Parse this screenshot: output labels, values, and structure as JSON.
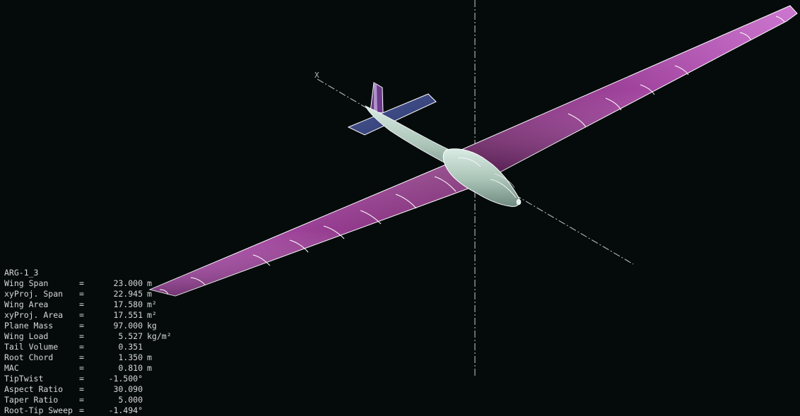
{
  "viewport": {
    "background": "#050b0b",
    "axis_label": "X"
  },
  "colors": {
    "wing_root": "#8a2f7e",
    "wing_tip": "#d06ad0",
    "elevator": "#3c4a80",
    "fin": "#6a3a8a",
    "fuselage": "#b7cfc4",
    "outline": "#ffffff",
    "axis": "#c8c8c8",
    "text": "#d8d8d8"
  },
  "plane": {
    "name": "ARG-1_3",
    "properties": [
      {
        "label": "Wing Span",
        "value": "23.000",
        "unit": "m"
      },
      {
        "label": "xyProj. Span",
        "value": "22.945",
        "unit": "m"
      },
      {
        "label": "Wing Area",
        "value": "17.580",
        "unit": "m²"
      },
      {
        "label": "xyProj. Area",
        "value": "17.551",
        "unit": "m²"
      },
      {
        "label": "Plane Mass",
        "value": "97.000",
        "unit": "kg"
      },
      {
        "label": "Wing Load",
        "value": "5.527",
        "unit": "kg/m²"
      },
      {
        "label": "Tail Volume",
        "value": "0.351",
        "unit": ""
      },
      {
        "label": "Root Chord",
        "value": "1.350",
        "unit": "m"
      },
      {
        "label": "MAC",
        "value": "0.810",
        "unit": "m"
      },
      {
        "label": "TipTwist",
        "value": "-1.500°",
        "unit": ""
      },
      {
        "label": "Aspect Ratio",
        "value": "30.090",
        "unit": ""
      },
      {
        "label": "Taper Ratio",
        "value": "5.000",
        "unit": ""
      },
      {
        "label": "Root-Tip Sweep",
        "value": "-1.494°",
        "unit": ""
      }
    ]
  }
}
